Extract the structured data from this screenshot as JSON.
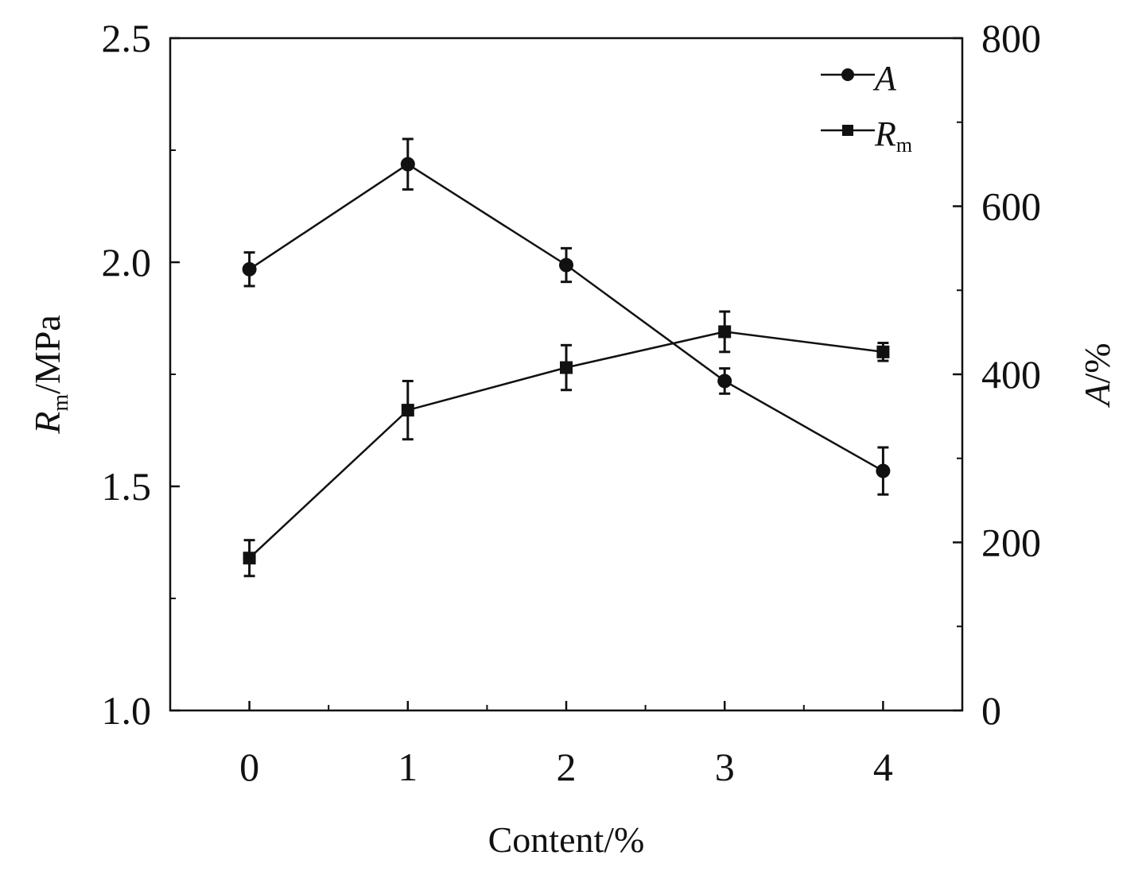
{
  "chart_data": {
    "type": "line",
    "x": [
      0,
      1,
      2,
      3,
      4
    ],
    "x_tick_labels": [
      "0",
      "1",
      "2",
      "3",
      "4"
    ],
    "xlim": [
      -0.5,
      4.5
    ],
    "xlabel": "Content/%",
    "y_left": {
      "label_main": "R",
      "label_sub": "m",
      "label_unit": "/MPa",
      "lim": [
        1.0,
        2.5
      ],
      "tick_labels": [
        "1.0",
        "1.5",
        "2.0",
        "2.5"
      ],
      "ticks": [
        1.0,
        1.5,
        2.0,
        2.5
      ]
    },
    "y_right": {
      "label_main": "A",
      "label_unit": "/%",
      "lim": [
        0,
        800
      ],
      "tick_labels": [
        "0",
        "200",
        "400",
        "600",
        "800"
      ],
      "ticks": [
        0,
        200,
        400,
        600,
        800
      ]
    },
    "series": [
      {
        "name": "A",
        "axis": "right",
        "marker": "circle",
        "values": [
          525,
          650,
          530,
          392,
          285
        ],
        "errors": [
          20,
          30,
          20,
          15,
          28
        ]
      },
      {
        "name": "R",
        "name_sub": "m",
        "axis": "left",
        "marker": "square",
        "values": [
          1.34,
          1.67,
          1.765,
          1.845,
          1.8
        ],
        "errors": [
          0.04,
          0.065,
          0.05,
          0.045,
          0.02
        ]
      }
    ],
    "legend_position": "top-right",
    "grid": false,
    "colors": {
      "line": "#111111",
      "marker": "#111111"
    }
  }
}
